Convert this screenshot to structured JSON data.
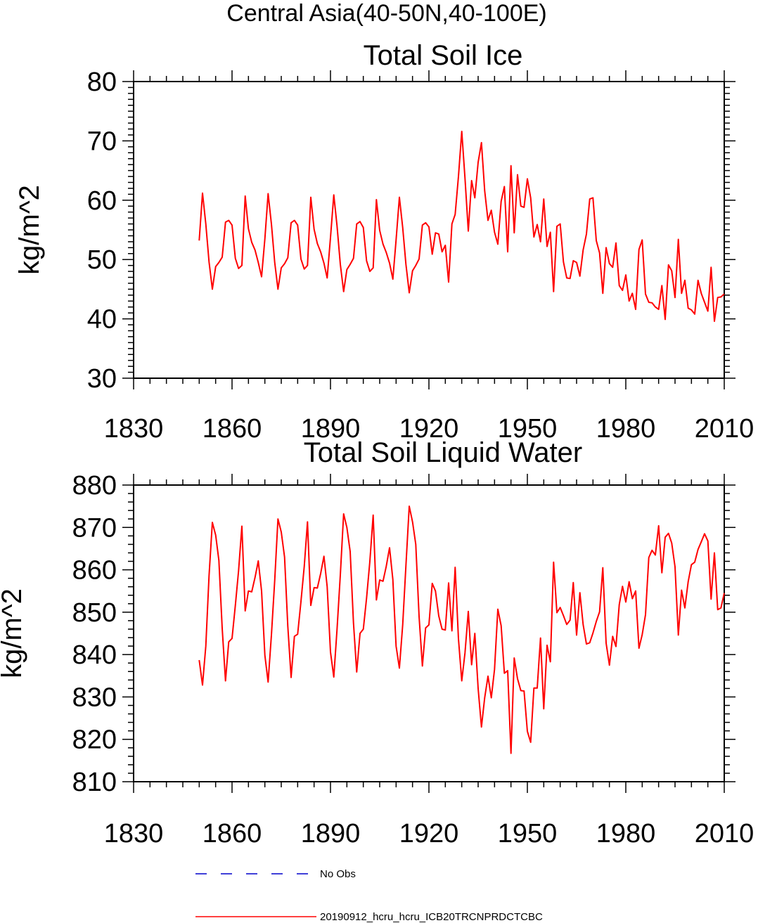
{
  "page_title": "Central Asia(40-50N,40-100E)",
  "chart_data": [
    {
      "type": "line",
      "title": "Total Soil Ice",
      "ylabel": "kg/m^2",
      "xlabel": "",
      "xlim": [
        1830,
        2010
      ],
      "ylim": [
        30,
        80
      ],
      "xticks": [
        1830,
        1860,
        1890,
        1920,
        1950,
        1980,
        2010
      ],
      "yticks": [
        30,
        40,
        50,
        60,
        70,
        80
      ],
      "series": [
        {
          "name": "20190912_hcru_hcru_ICB20TRCNPRDCTCBC",
          "color": "#ff0000",
          "x_start": 1850,
          "x_step": 1,
          "values": [
            53.2,
            61.2,
            56.0,
            49.6,
            45.0,
            48.8,
            49.5,
            50.4,
            56.3,
            56.6,
            55.8,
            50.2,
            48.5,
            49.0,
            60.7,
            55.2,
            52.9,
            51.6,
            49.5,
            47.1,
            53.5,
            61.1,
            56.0,
            49.5,
            45.0,
            48.6,
            49.3,
            50.3,
            56.2,
            56.6,
            55.8,
            50.1,
            48.4,
            49.0,
            60.5,
            55.1,
            52.7,
            51.3,
            49.4,
            46.9,
            53.7,
            60.9,
            55.7,
            49.2,
            44.6,
            48.3,
            49.2,
            50.2,
            56.0,
            56.4,
            55.4,
            49.8,
            48.0,
            48.6,
            60.1,
            54.9,
            52.6,
            51.2,
            49.4,
            46.7,
            53.3,
            60.5,
            55.4,
            49.2,
            44.4,
            48.1,
            49.0,
            50.1,
            55.8,
            56.2,
            55.5,
            50.9,
            54.5,
            54.3,
            51.3,
            52.4,
            46.2,
            56.0,
            57.6,
            64.0,
            71.6,
            63.7,
            54.8,
            63.3,
            60.4,
            66.4,
            69.7,
            61.6,
            56.6,
            58.3,
            54.6,
            52.6,
            59.8,
            62.3,
            51.3,
            65.8,
            54.5,
            64.3,
            59.0,
            58.8,
            63.6,
            60.4,
            53.8,
            55.9,
            53.0,
            60.2,
            52.2,
            54.6,
            44.6,
            55.6,
            56.0,
            49.6,
            46.9,
            46.8,
            49.8,
            49.5,
            47.2,
            51.6,
            54.3,
            60.2,
            60.4,
            53.2,
            51.1,
            44.3,
            52.0,
            49.3,
            48.7,
            52.8,
            45.6,
            44.8,
            47.4,
            43.0,
            44.3,
            41.6,
            51.7,
            53.3,
            44.2,
            42.8,
            42.7,
            42.0,
            41.6,
            45.6,
            39.9,
            49.1,
            48.1,
            43.6,
            53.4,
            44.3,
            46.5,
            41.8,
            41.5,
            40.8,
            46.5,
            44.3,
            42.8,
            41.3,
            48.7,
            39.6,
            43.6,
            43.7,
            44.2
          ]
        }
      ]
    },
    {
      "type": "line",
      "title": "Total Soil Liquid Water",
      "ylabel": "kg/m^2",
      "xlabel": "",
      "xlim": [
        1830,
        2010
      ],
      "ylim": [
        810,
        880
      ],
      "xticks": [
        1830,
        1860,
        1890,
        1920,
        1950,
        1980,
        2010
      ],
      "yticks": [
        810,
        820,
        830,
        840,
        850,
        860,
        870,
        880
      ],
      "series": [
        {
          "name": "20190912_hcru_hcru_ICB20TRCNPRDCTCBC",
          "color": "#ff0000",
          "x_start": 1850,
          "x_step": 1,
          "values": [
            838.7,
            832.8,
            842.0,
            858.6,
            871.2,
            868.2,
            862.2,
            846.2,
            833.8,
            843.0,
            843.8,
            851.6,
            859.8,
            870.3,
            850.3,
            855.0,
            854.8,
            858.2,
            862.1,
            855.0,
            839.8,
            833.5,
            844.6,
            857.5,
            872.0,
            868.9,
            863.0,
            846.7,
            834.6,
            844.3,
            844.8,
            852.5,
            860.8,
            871.3,
            851.6,
            855.8,
            855.7,
            859.1,
            863.2,
            856.0,
            840.6,
            834.7,
            845.9,
            858.8,
            873.2,
            870.0,
            864.3,
            847.5,
            835.9,
            845.0,
            846.0,
            853.3,
            862.0,
            872.9,
            852.9,
            857.6,
            857.3,
            860.8,
            865.2,
            857.7,
            842.0,
            836.8,
            847.0,
            861.0,
            875.0,
            871.3,
            866.0,
            849.0,
            837.3,
            846.3,
            847.0,
            856.8,
            855.0,
            849.1,
            846.0,
            845.8,
            856.9,
            845.6,
            860.6,
            843.7,
            833.8,
            840.4,
            850.2,
            837.6,
            845.0,
            832.0,
            822.9,
            829.8,
            834.9,
            829.8,
            836.5,
            850.7,
            846.8,
            835.6,
            836.2,
            816.7,
            839.2,
            834.3,
            831.5,
            831.4,
            821.9,
            819.3,
            832.1,
            832.1,
            843.9,
            827.2,
            842.2,
            838.3,
            861.8,
            849.9,
            851.1,
            849.2,
            847.1,
            848.1,
            857.0,
            844.6,
            854.6,
            847.1,
            842.5,
            842.8,
            845.1,
            847.8,
            850.1,
            860.5,
            842.7,
            837.5,
            844.3,
            841.9,
            851.8,
            856.1,
            852.4,
            857.2,
            853.2,
            855.0,
            841.5,
            844.7,
            849.4,
            862.9,
            864.6,
            863.5,
            870.4,
            859.3,
            867.7,
            868.6,
            866.3,
            860.7,
            844.6,
            855.2,
            851.0,
            857.2,
            861.2,
            861.8,
            864.8,
            866.6,
            868.5,
            866.8,
            853.1,
            864.0,
            850.6,
            851.0,
            854.5
          ]
        }
      ]
    }
  ],
  "legend": [
    {
      "label": "No Obs",
      "color": "#0000cc",
      "style": "dashed"
    },
    {
      "label": "20190912_hcru_hcru_ICB20TRCNPRDCTCBC",
      "color": "#ff0000",
      "style": "solid"
    }
  ]
}
